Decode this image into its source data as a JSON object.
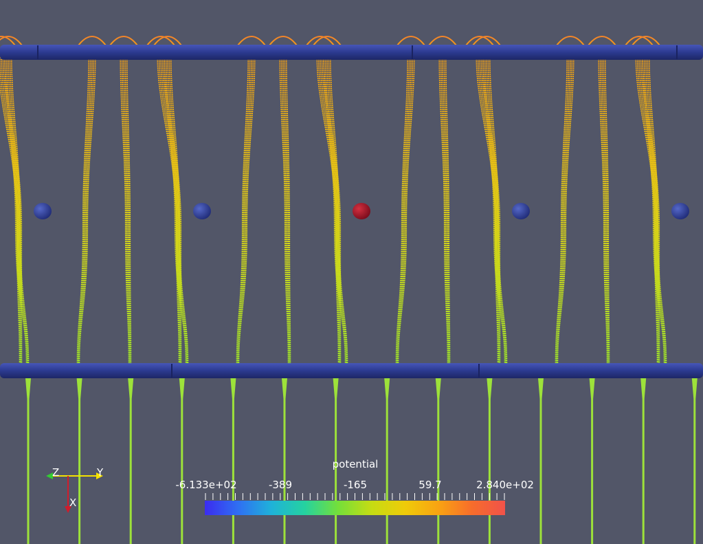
{
  "scene": {
    "background": "#525668",
    "wire_color": "#2d3a8e",
    "upper_wire": "upper-grid-wire",
    "lower_wire": "lower-grid-wire",
    "electrodes": [
      {
        "potential": "low",
        "color": "#2e3f9a"
      },
      {
        "potential": "low",
        "color": "#2e3f9a"
      },
      {
        "potential": "high",
        "color": "#a3142a"
      },
      {
        "potential": "low",
        "color": "#2e3f9a"
      },
      {
        "potential": "low",
        "color": "#2e3f9a"
      }
    ]
  },
  "orientation_axes": {
    "z_label": "Z",
    "y_label": "Y",
    "x_label": "X",
    "y_color": "#f5e100",
    "x_color": "#d01c2c",
    "z_color": "#33cc33"
  },
  "colorbar": {
    "title": "potential",
    "min_label": "-6.133e+02",
    "max_label": "2.840e+02",
    "tick_labels": [
      "-6.133e+02",
      "-389",
      "-165",
      "59.7",
      "2.840e+02"
    ],
    "min_value": -613.3,
    "max_value": 284.0,
    "colormap": [
      "#3b2cf0",
      "#2f6ff2",
      "#1fb2d9",
      "#25d2a0",
      "#74df3a",
      "#c6dc13",
      "#efcb09",
      "#f9a312",
      "#f76d2b",
      "#f1524a"
    ]
  }
}
